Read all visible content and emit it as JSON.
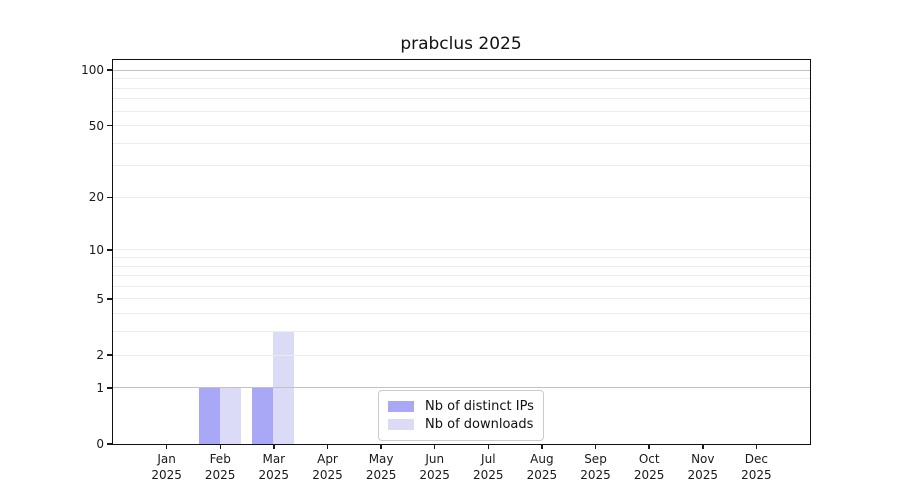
{
  "chart_data": {
    "type": "bar",
    "title": "prabclus 2025",
    "categories": [
      "Jan 2025",
      "Feb 2025",
      "Mar 2025",
      "Apr 2025",
      "May 2025",
      "Jun 2025",
      "Jul 2025",
      "Aug 2025",
      "Sep 2025",
      "Oct 2025",
      "Nov 2025",
      "Dec 2025"
    ],
    "month_labels": [
      "Jan",
      "Feb",
      "Mar",
      "Apr",
      "May",
      "Jun",
      "Jul",
      "Aug",
      "Sep",
      "Oct",
      "Nov",
      "Dec"
    ],
    "year_label": "2025",
    "series": [
      {
        "name": "Nb of distinct IPs",
        "color": "#a8a8f6",
        "values": [
          0,
          1,
          1,
          0,
          0,
          0,
          0,
          0,
          0,
          0,
          0,
          0
        ]
      },
      {
        "name": "Nb of downloads",
        "color": "#dbdbf8",
        "values": [
          0,
          1,
          3,
          0,
          0,
          0,
          0,
          0,
          0,
          0,
          0,
          0
        ]
      }
    ],
    "xlabel": "",
    "ylabel": "",
    "yscale": "log1p",
    "yticks": [
      0,
      1,
      2,
      5,
      10,
      20,
      50,
      100
    ],
    "ylim": [
      0,
      113
    ],
    "grid": "horizontal log gridlines, darker at 1 and 100",
    "legend_position": "inside lower center"
  },
  "colors": {
    "axis": "#111111",
    "grid_minor": "#ececec",
    "grid_major": "#c2c2c2",
    "legend_border": "#cbcbcb",
    "background": "#ffffff"
  }
}
